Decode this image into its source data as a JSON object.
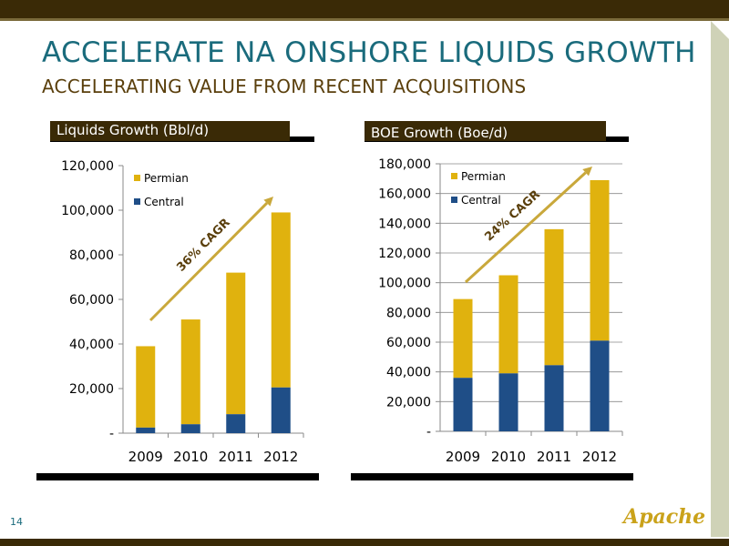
{
  "slide": {
    "title": "ACCELERATE NA ONSHORE LIQUIDS GROWTH",
    "subtitle": "ACCELERATING VALUE FROM RECENT ACQUISITIONS",
    "page_number": "14",
    "logo_text": "Apache"
  },
  "colors": {
    "permian": "#e0b20e",
    "central": "#1f4e87",
    "arrow": "#c9a83b",
    "title": "#1a6b7c",
    "subtitle": "#5a3f0c"
  },
  "chart_data": [
    {
      "type": "bar",
      "stacked": true,
      "title": "Liquids Growth (Bbl/d)",
      "categories": [
        "2009",
        "2010",
        "2011",
        "2012"
      ],
      "series": [
        {
          "name": "Central",
          "values": [
            2500,
            4000,
            8500,
            20500
          ]
        },
        {
          "name": "Permian",
          "values": [
            36500,
            47000,
            63500,
            78500
          ]
        }
      ],
      "ylim": [
        0,
        120000
      ],
      "yticks": [
        0,
        20000,
        40000,
        60000,
        80000,
        100000,
        120000
      ],
      "ytick_labels": [
        "-",
        "20,000",
        "40,000",
        "60,000",
        "80,000",
        "100,000",
        "120,000"
      ],
      "legend": [
        "Permian",
        "Central"
      ],
      "legend_position": "top-left",
      "annotation": "36% CAGR",
      "grid": false
    },
    {
      "type": "bar",
      "stacked": true,
      "title": "BOE Growth (Boe/d)",
      "categories": [
        "2009",
        "2010",
        "2011",
        "2012"
      ],
      "series": [
        {
          "name": "Central",
          "values": [
            36000,
            39000,
            44500,
            61000
          ]
        },
        {
          "name": "Permian",
          "values": [
            53000,
            66000,
            91500,
            108000
          ]
        }
      ],
      "ylim": [
        0,
        180000
      ],
      "yticks": [
        0,
        20000,
        40000,
        60000,
        80000,
        100000,
        120000,
        140000,
        160000,
        180000
      ],
      "ytick_labels": [
        "-",
        "20,000",
        "40,000",
        "60,000",
        "80,000",
        "100,000",
        "120,000",
        "140,000",
        "160,000",
        "180,000"
      ],
      "legend": [
        "Permian",
        "Central"
      ],
      "legend_position": "top-left",
      "annotation": "24% CAGR",
      "grid": true
    }
  ]
}
